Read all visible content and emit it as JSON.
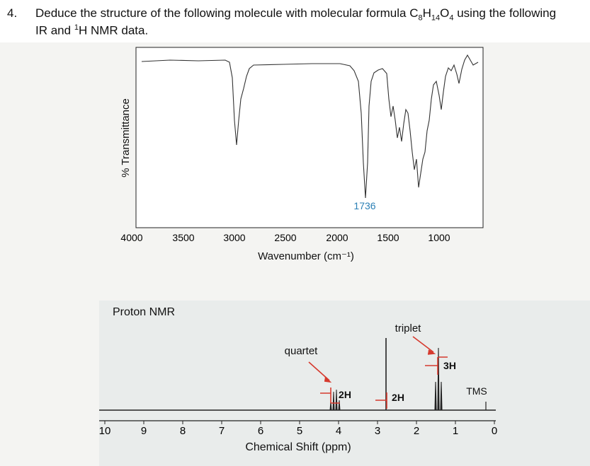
{
  "question": {
    "number": "4.",
    "line1_prefix": "Deduce the structure of the following molecule with molecular formula C",
    "c_count": "8",
    "h_label": "H",
    "h_count": "14",
    "o_label": "O",
    "o_count": "4",
    "line1_suffix": " using the following",
    "line2_prefix": "IR and ",
    "line2_sup": "1",
    "line2_suffix": "H NMR data."
  },
  "ir": {
    "ylabel": "% Transmittance",
    "xlabel": "Wavenumber (cm⁻¹)",
    "ticks": [
      "4000",
      "3500",
      "3000",
      "2500",
      "2000",
      "1500",
      "1000"
    ],
    "peak_label": "1736",
    "peak_label_color": "#2a7fb5"
  },
  "nmr": {
    "title": "Proton NMR",
    "xlabel": "Chemical Shift (ppm)",
    "ticks": [
      "10",
      "9",
      "8",
      "7",
      "6",
      "5",
      "4",
      "3",
      "2",
      "1",
      "0"
    ],
    "quartet_label": "quartet",
    "triplet_label": "triplet",
    "integration_quartet": "2H",
    "integration_singlet": "2H",
    "integration_triplet": "3H",
    "tms_label": "TMS",
    "annotation_color": "#d63a2e"
  }
}
